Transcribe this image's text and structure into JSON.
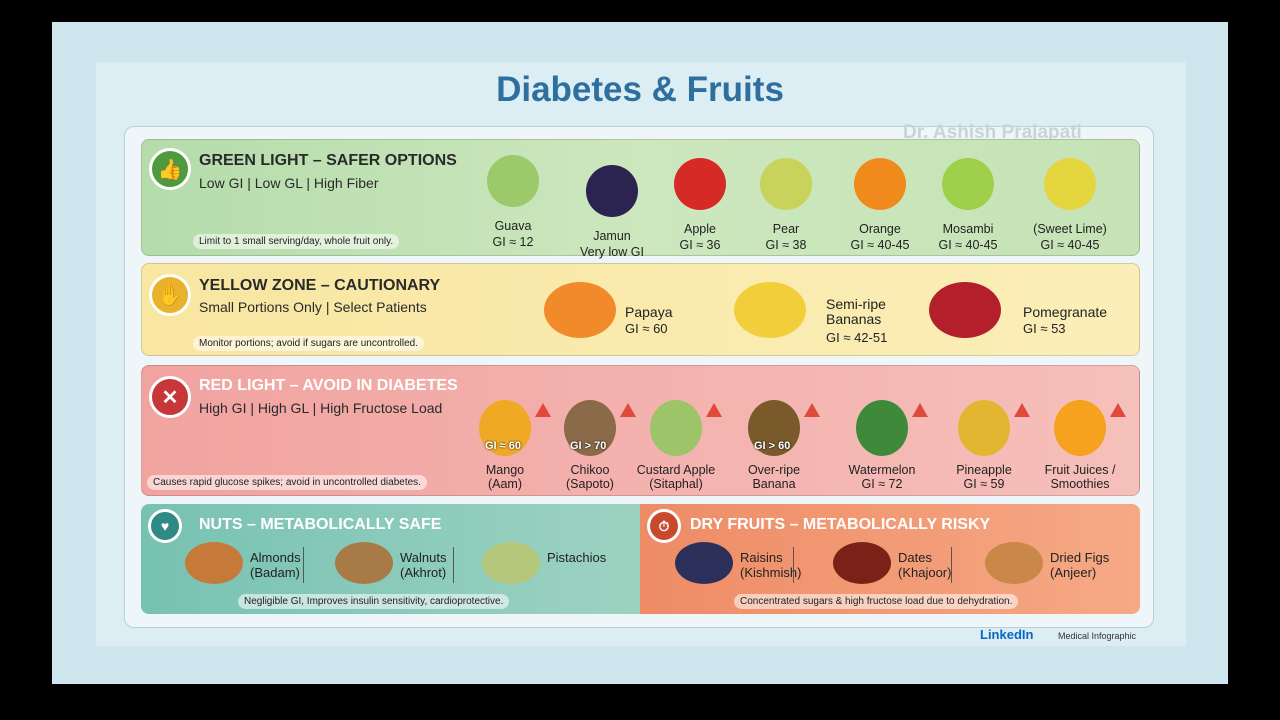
{
  "title": "Diabetes & Fruits",
  "watermark": "Dr. Ashish Prajapati",
  "green": {
    "heading": "GREEN LIGHT – SAFER OPTIONS",
    "sub": "Low GI | Low GL | High Fiber",
    "note": "Limit to 1 small serving/day, whole fruit only.",
    "icon": "thumbs-up-icon",
    "items": [
      {
        "name": "Guava",
        "gi": "GI ≈ 12",
        "color": "#9cc96a"
      },
      {
        "name": "Jamun",
        "gi": "Very low GI",
        "color": "#2b2350"
      },
      {
        "name": "Apple",
        "gi": "GI ≈ 36",
        "color": "#d52a25"
      },
      {
        "name": "Pear",
        "gi": "GI ≈ 38",
        "color": "#c7d35a"
      },
      {
        "name": "Orange",
        "gi": "GI ≈ 40-45",
        "color": "#f08a1c"
      },
      {
        "name": "Mosambi",
        "gi": "GI ≈ 40-45",
        "color": "#9ed04c"
      },
      {
        "name": "(Sweet Lime)",
        "gi": "GI ≈ 40-45",
        "color": "#e5d640"
      }
    ]
  },
  "yellow": {
    "heading": "YELLOW ZONE – CAUTIONARY",
    "sub": "Small Portions Only | Select Patients",
    "note": "Monitor portions; avoid if sugars are uncontrolled.",
    "icon": "hand-stop-icon",
    "items": [
      {
        "name": "Papaya",
        "gi": "GI ≈ 60",
        "color": "#f08a2a"
      },
      {
        "name": "Semi-ripe Bananas",
        "gi": "GI ≈ 42-51",
        "color": "#f2cf3a"
      },
      {
        "name": "Pomegranate",
        "gi": "GI ≈ 53",
        "color": "#b3202c"
      }
    ]
  },
  "red": {
    "heading": "RED LIGHT – AVOID IN DIABETES",
    "sub": "High GI | High GL | High Fructose Load",
    "note": "Causes rapid glucose spikes; avoid in uncontrolled diabetes.",
    "icon": "x-circle-icon",
    "items": [
      {
        "name": "Mango",
        "alt": "(Aam)",
        "gi": "GI ≈ 60",
        "color": "#f0a924"
      },
      {
        "name": "Chikoo",
        "alt": "(Sapoto)",
        "gi": "GI > 70",
        "color": "#8a6a48"
      },
      {
        "name": "Custard Apple",
        "alt": "(Sitaphal)",
        "gi": "",
        "color": "#9ec46a"
      },
      {
        "name": "Over-ripe",
        "alt": "Banana",
        "gi": "GI > 60",
        "color": "#7a5a2a"
      },
      {
        "name": "Watermelon",
        "alt": "GI ≈ 72",
        "gi": "",
        "color": "#3f8a3a"
      },
      {
        "name": "Pineapple",
        "alt": "GI ≈ 59",
        "gi": "",
        "color": "#e3b632"
      },
      {
        "name": "Fruit Juices /",
        "alt": "Smoothies",
        "gi": "",
        "color": "#f6a21e"
      }
    ]
  },
  "nuts": {
    "heading": "NUTS – METABOLICALLY SAFE",
    "note": "Negligible GI, Improves insulin sensitivity, cardioprotective.",
    "icon": "heart-pulse-icon",
    "items": [
      {
        "name": "Almonds",
        "alt": "(Badam)",
        "color": "#c67a3a"
      },
      {
        "name": "Walnuts",
        "alt": "(Akhrot)",
        "color": "#a87a46"
      },
      {
        "name": "Pistachios",
        "alt": "",
        "color": "#b5c77a"
      }
    ]
  },
  "dry": {
    "heading": "DRY FRUITS – METABOLICALLY RISKY",
    "note": "Concentrated sugars & high fructose load due to dehydration.",
    "icon": "clock-warning-icon",
    "items": [
      {
        "name": "Raisins",
        "alt": "(Kishmish)",
        "color": "#2c2f5a"
      },
      {
        "name": "Dates",
        "alt": "(Khajoor)",
        "color": "#7a2218"
      },
      {
        "name": "Dried Figs",
        "alt": "(Anjeer)",
        "color": "#c9884a"
      }
    ]
  },
  "footer": {
    "brand": "LinkedIn",
    "tag": "Medical Infographic"
  }
}
